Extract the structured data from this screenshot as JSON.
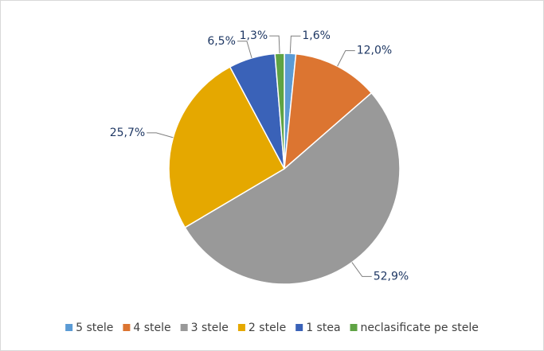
{
  "chart_data": {
    "type": "pie",
    "categories": [
      "5 stele",
      "4 stele",
      "3 stele",
      "2 stele",
      "1 stea",
      "neclasificate pe stele"
    ],
    "values": [
      1.6,
      12.0,
      52.9,
      25.7,
      6.5,
      1.3
    ],
    "value_labels": [
      "1,6%",
      "12,0%",
      "52,9%",
      "25,7%",
      "6,5%",
      "1,3%"
    ],
    "colors": [
      "#5b9bd5",
      "#dc7531",
      "#999999",
      "#e5a800",
      "#3a62b8",
      "#5fa344"
    ],
    "legend": "bottom"
  }
}
